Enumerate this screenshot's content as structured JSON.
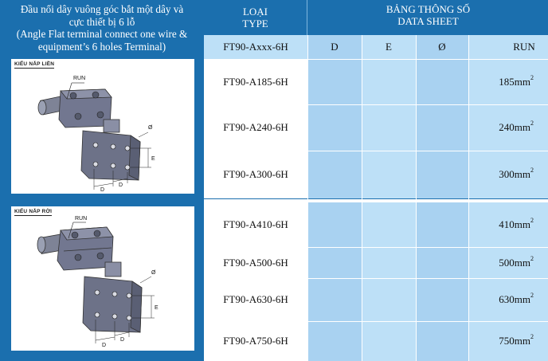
{
  "left_title": {
    "line1": "Đầu nối dây vuông góc bắt một dây và",
    "line2": "cực thiết bị 6 lỗ",
    "line3": "(Angle Flat terminal connect one wire &",
    "line4": "equipment’s 6 holes Terminal)"
  },
  "panels": [
    {
      "label": "KIỂU NẮP LIỀN",
      "run": "RUN",
      "dim_o": "Ø",
      "dim_e": "E",
      "dim_d1": "D",
      "dim_d2": "D"
    },
    {
      "label": "KIỂU NẮP RỜI",
      "run": "RUN",
      "dim_o": "Ø",
      "dim_e": "E",
      "dim_d1": "D",
      "dim_d2": "D"
    }
  ],
  "table": {
    "header_type_l1": "LOẠI",
    "header_type_l2": "TYPE",
    "header_sheet_l1": "BẢNG THÔNG SỐ",
    "header_sheet_l2": "DATA SHEET",
    "columns": {
      "type": "FT90-Axxx-6H",
      "d": "D",
      "e": "E",
      "o": "Ø",
      "run": "RUN"
    },
    "unit_sup": "2",
    "rows": [
      {
        "type": "FT90-A185-6H",
        "d": "",
        "e": "",
        "o": "",
        "run": "185mm"
      },
      {
        "type": "FT90-A240-6H",
        "d": "",
        "e": "",
        "o": "",
        "run": "240mm"
      },
      {
        "type": "FT90-A300-6H",
        "d": "",
        "e": "",
        "o": "",
        "run": "300mm"
      },
      {
        "type": "FT90-A410-6H",
        "d": "",
        "e": "",
        "o": "",
        "run": "410mm"
      },
      {
        "type": "FT90-A500-6H",
        "d": "",
        "e": "",
        "o": "",
        "run": "500mm"
      },
      {
        "type": "FT90-A630-6H",
        "d": "",
        "e": "",
        "o": "",
        "run": "630mm"
      },
      {
        "type": "FT90-A750-6H",
        "d": "",
        "e": "",
        "o": "",
        "run": "750mm"
      }
    ]
  },
  "colors": {
    "frame": "#1b6fae",
    "cell_light": "#bde0f7",
    "cell_mid": "#a9d2f1",
    "metal": "#6f7489"
  }
}
